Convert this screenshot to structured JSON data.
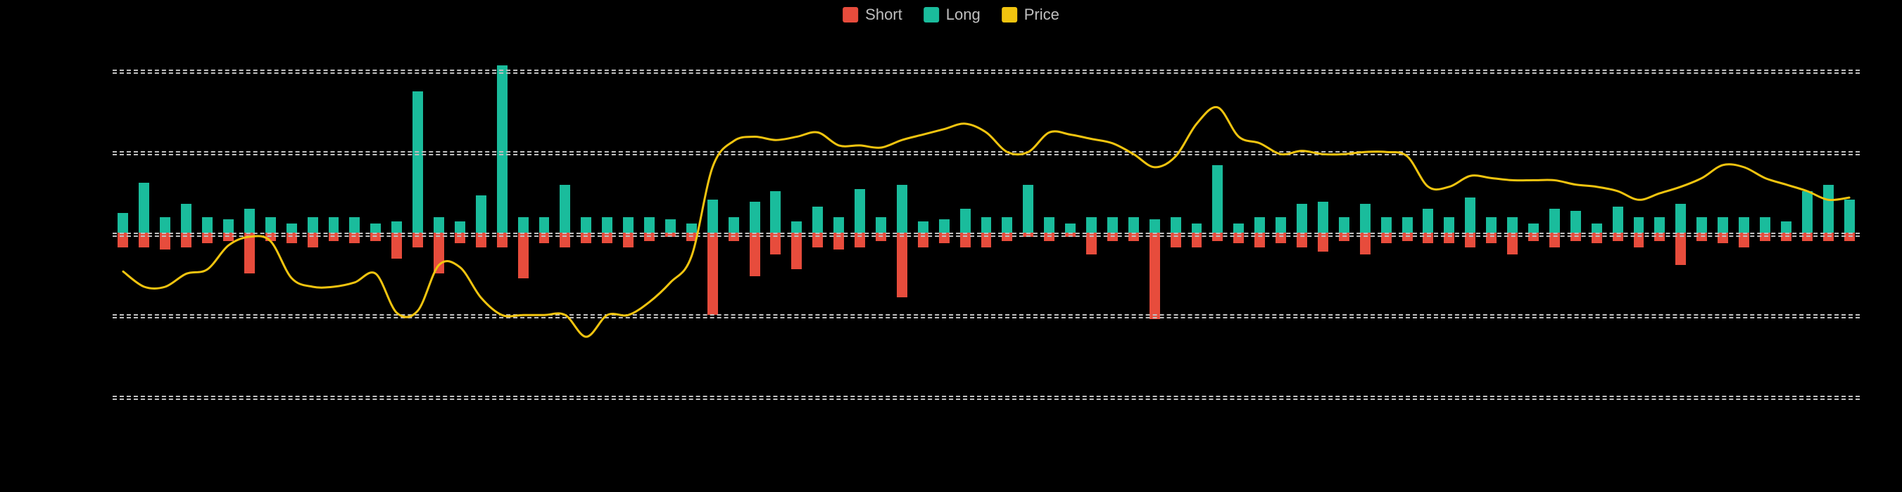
{
  "chart": {
    "type": "bar+line",
    "background_color": "#000000",
    "plot_background": "#000000",
    "legend": {
      "items": [
        {
          "label": "Short",
          "color": "#e74c3c"
        },
        {
          "label": "Long",
          "color": "#1abc9c"
        },
        {
          "label": "Price",
          "color": "#f1c40f"
        }
      ],
      "text_color": "#bfbfbf",
      "fontsize": 22
    },
    "grid": {
      "style": "dashed",
      "color": "#c0c0c0",
      "width": 2,
      "lines_y": [
        150,
        75,
        -75,
        -150
      ],
      "baseline_y": 0,
      "double_line_offset": 4
    },
    "yaxis": {
      "min": -200,
      "max": 175
    },
    "series": {
      "long_color": "#1abc9c",
      "short_color": "#e74c3c",
      "price_color": "#f1c40f",
      "price_width": 3,
      "bar_width_ratio": 0.5,
      "data": [
        {
          "long": 18,
          "short": 14,
          "price": -36
        },
        {
          "long": 46,
          "short": 14,
          "price": -50
        },
        {
          "long": 14,
          "short": 16,
          "price": -50
        },
        {
          "long": 26,
          "short": 14,
          "price": -38
        },
        {
          "long": 14,
          "short": 10,
          "price": -34
        },
        {
          "long": 12,
          "short": 8,
          "price": -12
        },
        {
          "long": 22,
          "short": 38,
          "price": -4
        },
        {
          "long": 14,
          "short": 8,
          "price": -8
        },
        {
          "long": 8,
          "short": 10,
          "price": -42
        },
        {
          "long": 14,
          "short": 14,
          "price": -50
        },
        {
          "long": 14,
          "short": 8,
          "price": -50
        },
        {
          "long": 14,
          "short": 10,
          "price": -46
        },
        {
          "long": 8,
          "short": 8,
          "price": -38
        },
        {
          "long": 10,
          "short": 24,
          "price": -74
        },
        {
          "long": 130,
          "short": 14,
          "price": -72
        },
        {
          "long": 14,
          "short": 38,
          "price": -30
        },
        {
          "long": 10,
          "short": 10,
          "price": -32
        },
        {
          "long": 34,
          "short": 14,
          "price": -60
        },
        {
          "long": 154,
          "short": 14,
          "price": -76
        },
        {
          "long": 14,
          "short": 42,
          "price": -76
        },
        {
          "long": 14,
          "short": 10,
          "price": -76
        },
        {
          "long": 44,
          "short": 14,
          "price": -76
        },
        {
          "long": 14,
          "short": 10,
          "price": -96
        },
        {
          "long": 14,
          "short": 10,
          "price": -76
        },
        {
          "long": 14,
          "short": 14,
          "price": -76
        },
        {
          "long": 14,
          "short": 8,
          "price": -64
        },
        {
          "long": 12,
          "short": 4,
          "price": -46
        },
        {
          "long": 8,
          "short": 8,
          "price": -22
        },
        {
          "long": 30,
          "short": 76,
          "price": 60
        },
        {
          "long": 14,
          "short": 8,
          "price": 84
        },
        {
          "long": 28,
          "short": 40,
          "price": 88
        },
        {
          "long": 38,
          "short": 20,
          "price": 85
        },
        {
          "long": 10,
          "short": 34,
          "price": 88
        },
        {
          "long": 24,
          "short": 14,
          "price": 92
        },
        {
          "long": 14,
          "short": 16,
          "price": 80
        },
        {
          "long": 40,
          "short": 14,
          "price": 80
        },
        {
          "long": 14,
          "short": 8,
          "price": 78
        },
        {
          "long": 44,
          "short": 60,
          "price": 85
        },
        {
          "long": 10,
          "short": 14,
          "price": 90
        },
        {
          "long": 12,
          "short": 10,
          "price": 95
        },
        {
          "long": 22,
          "short": 14,
          "price": 100
        },
        {
          "long": 14,
          "short": 14,
          "price": 92
        },
        {
          "long": 14,
          "short": 8,
          "price": 74
        },
        {
          "long": 44,
          "short": 4,
          "price": 74
        },
        {
          "long": 14,
          "short": 8,
          "price": 92
        },
        {
          "long": 8,
          "short": 4,
          "price": 90
        },
        {
          "long": 14,
          "short": 20,
          "price": 86
        },
        {
          "long": 14,
          "short": 8,
          "price": 82
        },
        {
          "long": 14,
          "short:": 8,
          "short": 8,
          "price": 72
        },
        {
          "long": 12,
          "short": 80,
          "price": 60
        },
        {
          "long": 14,
          "short": 14,
          "price": 70
        },
        {
          "long": 8,
          "short": 14,
          "price": 100
        },
        {
          "long": 62,
          "short": 8,
          "price": 115
        },
        {
          "long": 8,
          "short": 10,
          "price": 88
        },
        {
          "long": 14,
          "short": 14,
          "price": 82
        },
        {
          "long": 14,
          "short": 10,
          "price": 72
        },
        {
          "long": 26,
          "short": 14,
          "price": 75
        },
        {
          "long": 28,
          "short": 18,
          "price": 72
        },
        {
          "long": 14,
          "short": 8,
          "price": 72
        },
        {
          "long": 26,
          "short": 20,
          "price": 74
        },
        {
          "long": 14,
          "short": 10,
          "price": 74
        },
        {
          "long": 14,
          "short": 8,
          "price": 70
        },
        {
          "long": 22,
          "short": 10,
          "price": 42
        },
        {
          "long": 14,
          "short": 10,
          "price": 42
        },
        {
          "long": 32,
          "short": 14,
          "price": 52
        },
        {
          "long": 14,
          "short": 10,
          "price": 50
        },
        {
          "long": 14,
          "short": 20,
          "price": 48
        },
        {
          "long": 8,
          "short": 8,
          "price": 48
        },
        {
          "long": 22,
          "short": 14,
          "price": 48
        },
        {
          "long": 20,
          "short": 8,
          "price": 44
        },
        {
          "long": 8,
          "short": 10,
          "price": 42
        },
        {
          "long": 24,
          "short": 8,
          "price": 38
        },
        {
          "long": 14,
          "short": 14,
          "price": 30
        },
        {
          "long": 14,
          "short": 8,
          "price": 36
        },
        {
          "long": 26,
          "short": 30,
          "price": 42
        },
        {
          "long": 14,
          "short": 8,
          "price": 50
        },
        {
          "long": 14,
          "short": 10,
          "price": 62
        },
        {
          "long": 14,
          "short": 14,
          "price": 60
        },
        {
          "long": 14,
          "short": 8,
          "price": 50
        },
        {
          "long": 10,
          "short": 8,
          "price": 44
        },
        {
          "long": 38,
          "short": 8,
          "price": 38
        },
        {
          "long": 44,
          "short": 8,
          "price": 30
        },
        {
          "long": 30,
          "short": 8,
          "price": 32
        }
      ]
    }
  }
}
